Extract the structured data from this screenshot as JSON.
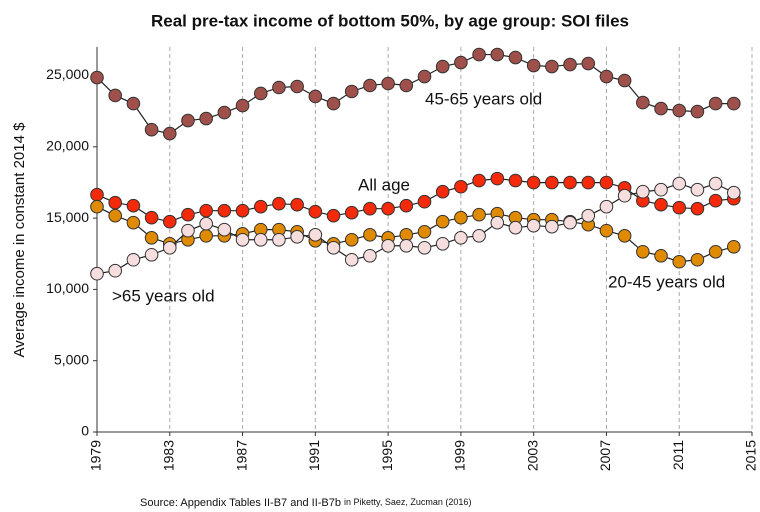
{
  "chart_data": {
    "type": "line",
    "title": "Real pre-tax income of bottom 50%, by age group: SOI files",
    "y_label": "Average income in constant 2014 $",
    "source": "Source: Appendix Tables II-B7 and II-B7b",
    "source_detail": "in Piketty, Saez, Zucman (2016)",
    "x": [
      1979,
      1980,
      1981,
      1982,
      1983,
      1984,
      1985,
      1986,
      1987,
      1988,
      1989,
      1990,
      1991,
      1992,
      1993,
      1994,
      1995,
      1996,
      1997,
      1998,
      1999,
      2000,
      2001,
      2002,
      2003,
      2004,
      2005,
      2006,
      2007,
      2008,
      2009,
      2010,
      2011,
      2012,
      2013,
      2014
    ],
    "xlim": [
      1979,
      2015
    ],
    "xticks": [
      1979,
      1983,
      1987,
      1991,
      1995,
      1999,
      2003,
      2007,
      2011,
      2015
    ],
    "ylim": [
      0,
      27000
    ],
    "yticks": [
      0,
      {
        "value": 5000,
        "label": "5,000"
      },
      {
        "value": 10000,
        "label": "10,000"
      },
      {
        "value": 15000,
        "label": "15,000"
      },
      {
        "value": 20000,
        "label": "20,000"
      },
      {
        "value": 25000,
        "label": "25,000"
      }
    ],
    "grid": "x",
    "series": [
      {
        "name": "45-65 years old",
        "color": "#a0504a",
        "values": [
          24860,
          23600,
          23030,
          21200,
          20930,
          21840,
          21980,
          22400,
          22890,
          23740,
          24160,
          24230,
          23530,
          23030,
          23880,
          24300,
          24440,
          24300,
          24930,
          25630,
          25910,
          26470,
          26470,
          26260,
          25700,
          25630,
          25770,
          25840,
          24930,
          24650,
          23100,
          22680,
          22540,
          22470,
          23030,
          23030
        ]
      },
      {
        "name": "All age",
        "color": "#f52a0a",
        "values": [
          16640,
          16080,
          15870,
          15030,
          14750,
          15240,
          15520,
          15520,
          15520,
          15800,
          16010,
          15940,
          15450,
          15170,
          15380,
          15660,
          15660,
          15870,
          16150,
          16850,
          17200,
          17630,
          17770,
          17630,
          17490,
          17490,
          17490,
          17490,
          17490,
          17130,
          16220,
          15940,
          15730,
          15660,
          16220,
          16360
        ]
      },
      {
        "name": "20-45 years old",
        "color": "#e08a00",
        "values": [
          15800,
          15170,
          14680,
          13620,
          13200,
          13480,
          13760,
          13760,
          13900,
          14190,
          14190,
          14040,
          13410,
          13200,
          13480,
          13830,
          13620,
          13830,
          14040,
          14750,
          15030,
          15240,
          15310,
          15030,
          14890,
          14890,
          14750,
          14540,
          14120,
          13760,
          12640,
          12360,
          11940,
          12080,
          12640,
          12990
        ]
      },
      {
        "name": ">65 years old",
        "color": "#f7dede",
        "values": [
          11100,
          11310,
          12080,
          12430,
          12920,
          14120,
          14610,
          14190,
          13480,
          13480,
          13480,
          13690,
          13830,
          12920,
          12080,
          12360,
          13060,
          13060,
          12920,
          13200,
          13620,
          13760,
          14680,
          14330,
          14470,
          14400,
          14680,
          15170,
          15800,
          16570,
          16850,
          16990,
          17420,
          16990,
          17420,
          16780
        ]
      }
    ]
  }
}
